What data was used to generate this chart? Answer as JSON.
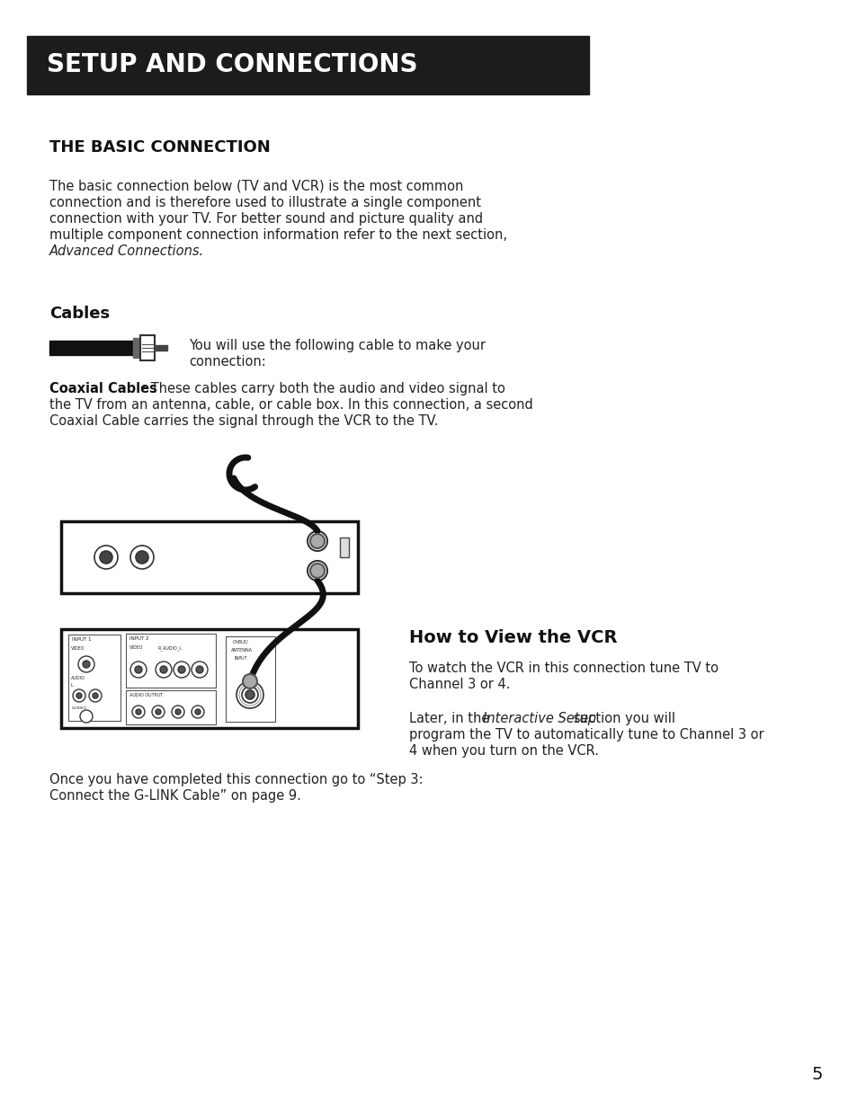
{
  "bg_color": "#ffffff",
  "header_bg": "#1c1c1c",
  "header_text": "SETUP AND CONNECTIONS",
  "header_text_color": "#ffffff",
  "section1_title": "THE BASIC CONNECTION",
  "section1_body_line1": "The basic connection below (TV and VCR) is the most common",
  "section1_body_line2": "connection and is therefore used to illustrate a single component",
  "section1_body_line3": "connection with your TV. For better sound and picture quality and",
  "section1_body_line4": "multiple component connection information refer to the next section,",
  "section1_body_italic": "Advanced Connections.",
  "cables_title": "Cables",
  "cables_desc_line1": "You will use the following cable to make your",
  "cables_desc_line2": "connection:",
  "coaxial_bold": "Coaxial Cables",
  "coaxial_rest_line1": ": These cables carry both the audio and video signal to",
  "coaxial_rest_line2": "the TV from an antenna, cable, or cable box. In this connection, a second",
  "coaxial_rest_line3": "Coaxial Cable carries the signal through the VCR to the TV.",
  "vcr_title": "How to View the VCR",
  "vcr_body1_line1": "To watch the VCR in this connection tune TV to",
  "vcr_body1_line2": "Channel 3 or 4.",
  "vcr_body2_pre": "Later, in the ",
  "vcr_body2_italic": "Interactive Setup",
  "vcr_body2_post": " section you will",
  "vcr_body2_line2": "program the TV to automatically tune to Channel 3 or",
  "vcr_body2_line3": "4 when you turn on the VCR.",
  "footer_line1": "Once you have completed this connection go to “Step 3:",
  "footer_line2": "Connect the G-LINK Cable” on page 9.",
  "page_number": "5"
}
